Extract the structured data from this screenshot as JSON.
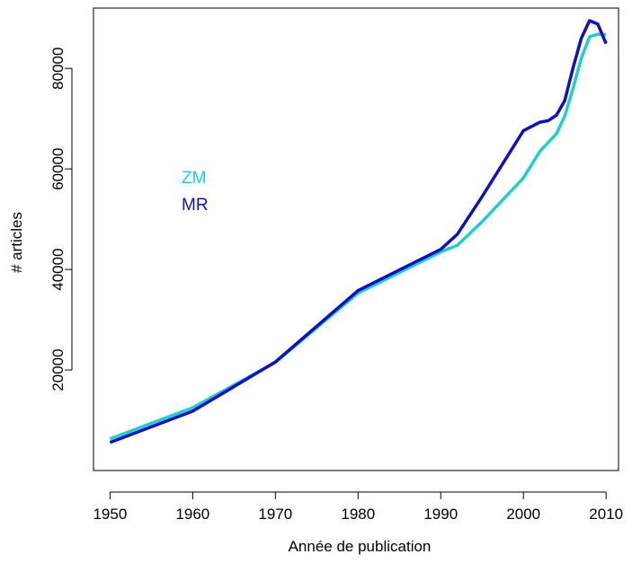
{
  "chart_data": {
    "type": "line",
    "title": "",
    "xlabel": "Année de publication",
    "ylabel": "# articles",
    "xlim": [
      1948,
      2011.5
    ],
    "ylim": [
      0,
      92000
    ],
    "xticks": [
      1950,
      1960,
      1970,
      1980,
      1990,
      2000,
      2010
    ],
    "yticks": [
      20000,
      40000,
      60000,
      80000
    ],
    "xtick_labels": [
      "1950",
      "1960",
      "1970",
      "1980",
      "1990",
      "2000",
      "2010"
    ],
    "ytick_labels": [
      "20000",
      "40000",
      "60000",
      "80000"
    ],
    "grid": false,
    "legend_position": "left, inside plot",
    "series": [
      {
        "name": "ZM",
        "color": "#1fcfcf",
        "x": [
          1950,
          1960,
          1970,
          1980,
          1990,
          1992,
          1995,
          2000,
          2002,
          2004,
          2005,
          2006,
          2007,
          2008,
          2009,
          2010
        ],
        "y": [
          6300,
          12500,
          21500,
          35300,
          43500,
          44800,
          49500,
          58200,
          63500,
          67000,
          70500,
          76000,
          82000,
          86300,
          86800,
          86700
        ]
      },
      {
        "name": "MR",
        "color": "#1010c0",
        "x": [
          1950,
          1960,
          1970,
          1980,
          1990,
          1992,
          1995,
          2000,
          2002,
          2003,
          2004,
          2005,
          2006,
          2007,
          2008,
          2009,
          2010
        ],
        "y": [
          5600,
          11800,
          21600,
          35800,
          44000,
          47000,
          54500,
          67600,
          69300,
          69600,
          70700,
          73600,
          80100,
          86000,
          89500,
          88800,
          84900
        ]
      }
    ]
  }
}
